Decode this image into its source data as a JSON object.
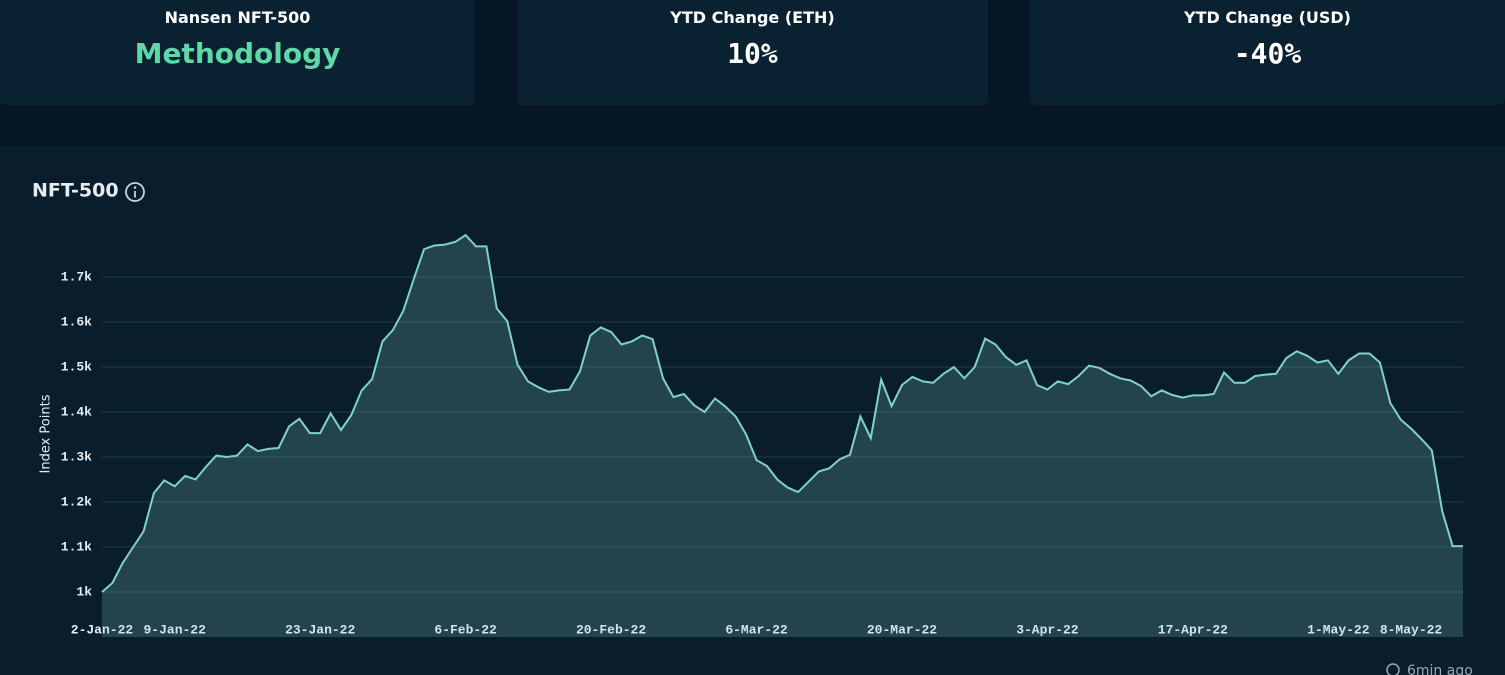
{
  "cards": [
    {
      "label": "Nansen NFT-500",
      "value": "Methodology"
    },
    {
      "label": "YTD Change (ETH)",
      "value": "10%"
    },
    {
      "label": "YTD Change (USD)",
      "value": "-40%"
    }
  ],
  "footer": "6min ago",
  "chart_data": {
    "type": "line",
    "title": "NFT-500",
    "y_label": "Index Points",
    "color": "#7fd3c6",
    "grid": true,
    "xlim": [
      "2022-01-02",
      "2022-05-13"
    ],
    "xticks": [
      {
        "value": "2022-01-02",
        "label": "2-Jan-22"
      },
      {
        "value": "2022-01-09",
        "label": "9-Jan-22"
      },
      {
        "value": "2022-01-23",
        "label": "23-Jan-22"
      },
      {
        "value": "2022-02-06",
        "label": "6-Feb-22"
      },
      {
        "value": "2022-02-20",
        "label": "20-Feb-22"
      },
      {
        "value": "2022-03-06",
        "label": "6-Mar-22"
      },
      {
        "value": "2022-03-20",
        "label": "20-Mar-22"
      },
      {
        "value": "2022-04-03",
        "label": "3-Apr-22"
      },
      {
        "value": "2022-04-17",
        "label": "17-Apr-22"
      },
      {
        "value": "2022-05-01",
        "label": "1-May-22"
      },
      {
        "value": "2022-05-08",
        "label": "8-May-22"
      }
    ],
    "ylim": [
      900,
      1800
    ],
    "yticks": [
      {
        "value": 1000,
        "label": "1k"
      },
      {
        "value": 1100,
        "label": "1.1k"
      },
      {
        "value": 1200,
        "label": "1.2k"
      },
      {
        "value": 1300,
        "label": "1.3k"
      },
      {
        "value": 1400,
        "label": "1.4k"
      },
      {
        "value": 1500,
        "label": "1.5k"
      },
      {
        "value": 1600,
        "label": "1.6k"
      },
      {
        "value": 1700,
        "label": "1.7k"
      }
    ],
    "x": [
      "2022-01-02",
      "2022-01-03",
      "2022-01-04",
      "2022-01-05",
      "2022-01-06",
      "2022-01-07",
      "2022-01-08",
      "2022-01-09",
      "2022-01-10",
      "2022-01-11",
      "2022-01-12",
      "2022-01-13",
      "2022-01-14",
      "2022-01-15",
      "2022-01-16",
      "2022-01-17",
      "2022-01-18",
      "2022-01-19",
      "2022-01-20",
      "2022-01-21",
      "2022-01-22",
      "2022-01-23",
      "2022-01-24",
      "2022-01-25",
      "2022-01-26",
      "2022-01-27",
      "2022-01-28",
      "2022-01-29",
      "2022-01-30",
      "2022-01-31",
      "2022-02-01",
      "2022-02-02",
      "2022-02-03",
      "2022-02-04",
      "2022-02-05",
      "2022-02-06",
      "2022-02-07",
      "2022-02-08",
      "2022-02-09",
      "2022-02-10",
      "2022-02-11",
      "2022-02-12",
      "2022-02-13",
      "2022-02-14",
      "2022-02-15",
      "2022-02-16",
      "2022-02-17",
      "2022-02-18",
      "2022-02-19",
      "2022-02-20",
      "2022-02-21",
      "2022-02-22",
      "2022-02-23",
      "2022-02-24",
      "2022-02-25",
      "2022-02-26",
      "2022-02-27",
      "2022-02-28",
      "2022-03-01",
      "2022-03-02",
      "2022-03-03",
      "2022-03-04",
      "2022-03-05",
      "2022-03-06",
      "2022-03-07",
      "2022-03-08",
      "2022-03-09",
      "2022-03-10",
      "2022-03-11",
      "2022-03-12",
      "2022-03-13",
      "2022-03-14",
      "2022-03-15",
      "2022-03-16",
      "2022-03-17",
      "2022-03-18",
      "2022-03-19",
      "2022-03-20",
      "2022-03-21",
      "2022-03-22",
      "2022-03-23",
      "2022-03-24",
      "2022-03-25",
      "2022-03-26",
      "2022-03-27",
      "2022-03-28",
      "2022-03-29",
      "2022-03-30",
      "2022-03-31",
      "2022-04-01",
      "2022-04-02",
      "2022-04-03",
      "2022-04-04",
      "2022-04-05",
      "2022-04-06",
      "2022-04-07",
      "2022-04-08",
      "2022-04-09",
      "2022-04-10",
      "2022-04-11",
      "2022-04-12",
      "2022-04-13",
      "2022-04-14",
      "2022-04-15",
      "2022-04-16",
      "2022-04-17",
      "2022-04-18",
      "2022-04-19",
      "2022-04-20",
      "2022-04-21",
      "2022-04-22",
      "2022-04-23",
      "2022-04-24",
      "2022-04-25",
      "2022-04-26",
      "2022-04-27",
      "2022-04-28",
      "2022-04-29",
      "2022-04-30",
      "2022-05-01",
      "2022-05-02",
      "2022-05-03",
      "2022-05-04",
      "2022-05-05",
      "2022-05-06",
      "2022-05-07",
      "2022-05-08",
      "2022-05-09",
      "2022-05-10",
      "2022-05-11",
      "2022-05-12",
      "2022-05-13"
    ],
    "values": [
      1000,
      1020,
      1065,
      1100,
      1135,
      1220,
      1248,
      1235,
      1258,
      1250,
      1278,
      1303,
      1300,
      1303,
      1328,
      1313,
      1318,
      1320,
      1368,
      1385,
      1353,
      1353,
      1397,
      1360,
      1393,
      1448,
      1473,
      1557,
      1582,
      1625,
      1695,
      1762,
      1770,
      1772,
      1778,
      1793,
      1768,
      1768,
      1630,
      1602,
      1505,
      1468,
      1455,
      1445,
      1448,
      1450,
      1490,
      1570,
      1588,
      1578,
      1550,
      1557,
      1570,
      1562,
      1475,
      1433,
      1440,
      1415,
      1400,
      1430,
      1412,
      1390,
      1350,
      1293,
      1280,
      1250,
      1232,
      1222,
      1245,
      1268,
      1275,
      1295,
      1305,
      1390,
      1342,
      1472,
      1413,
      1460,
      1478,
      1468,
      1465,
      1485,
      1500,
      1475,
      1500,
      1563,
      1550,
      1522,
      1505,
      1515,
      1460,
      1450,
      1468,
      1462,
      1480,
      1503,
      1498,
      1485,
      1475,
      1470,
      1458,
      1435,
      1448,
      1438,
      1432,
      1437,
      1437,
      1440,
      1488,
      1465,
      1465,
      1480,
      1483,
      1485,
      1520,
      1535,
      1525,
      1510,
      1515,
      1485,
      1515,
      1530,
      1530,
      1510,
      1420,
      1383,
      1363,
      1340,
      1315,
      1180,
      1102,
      1102
    ]
  }
}
